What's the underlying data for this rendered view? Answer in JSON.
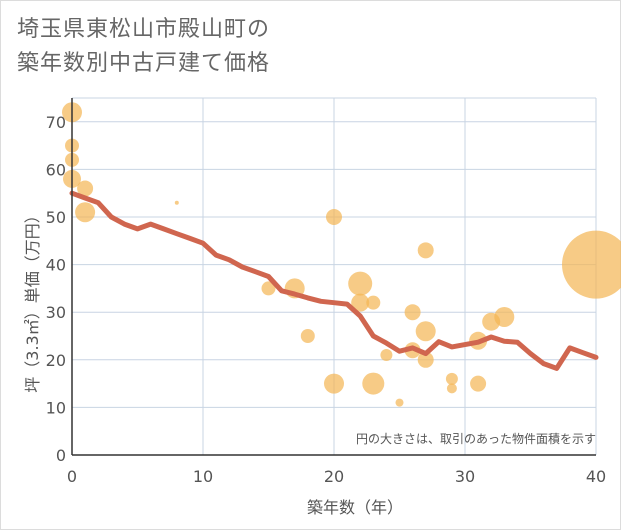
{
  "title": {
    "line1": "埼玉県東松山市殿山町の",
    "line2": "築年数別中古戸建て価格"
  },
  "chart_data": {
    "type": "scatter",
    "xlabel": "築年数（年）",
    "ylabel": "坪（3.3㎡）単価（万円）",
    "xlim": [
      0,
      40
    ],
    "ylim": [
      0,
      75
    ],
    "x_ticks": [
      0,
      10,
      20,
      30,
      40
    ],
    "y_ticks": [
      0,
      10,
      20,
      30,
      40,
      50,
      60,
      70
    ],
    "grid": true,
    "note": "円の大きさは、取引のあった物件面積を示す",
    "colors": {
      "bubble": "#f3b552",
      "trend": "#d0664f",
      "grid": "#c8d4e3",
      "axis": "#333333"
    },
    "bubbles": [
      {
        "x": 0,
        "y": 72,
        "size": 10
      },
      {
        "x": 0,
        "y": 65,
        "size": 7
      },
      {
        "x": 0,
        "y": 62,
        "size": 7
      },
      {
        "x": 0,
        "y": 58,
        "size": 9
      },
      {
        "x": 1,
        "y": 56,
        "size": 8
      },
      {
        "x": 1,
        "y": 51,
        "size": 10
      },
      {
        "x": 8,
        "y": 53,
        "size": 2
      },
      {
        "x": 15,
        "y": 35,
        "size": 7
      },
      {
        "x": 17,
        "y": 35,
        "size": 10
      },
      {
        "x": 18,
        "y": 25,
        "size": 7
      },
      {
        "x": 20,
        "y": 50,
        "size": 8
      },
      {
        "x": 20,
        "y": 15,
        "size": 10
      },
      {
        "x": 22,
        "y": 36,
        "size": 12
      },
      {
        "x": 22,
        "y": 32,
        "size": 9
      },
      {
        "x": 23,
        "y": 32,
        "size": 7
      },
      {
        "x": 23,
        "y": 15,
        "size": 11
      },
      {
        "x": 24,
        "y": 21,
        "size": 6
      },
      {
        "x": 25,
        "y": 11,
        "size": 4
      },
      {
        "x": 26,
        "y": 30,
        "size": 8
      },
      {
        "x": 26,
        "y": 22,
        "size": 8
      },
      {
        "x": 27,
        "y": 43,
        "size": 8
      },
      {
        "x": 27,
        "y": 26,
        "size": 10
      },
      {
        "x": 27,
        "y": 20,
        "size": 8
      },
      {
        "x": 29,
        "y": 16,
        "size": 6
      },
      {
        "x": 29,
        "y": 14,
        "size": 5
      },
      {
        "x": 31,
        "y": 24,
        "size": 9
      },
      {
        "x": 31,
        "y": 15,
        "size": 8
      },
      {
        "x": 32,
        "y": 28,
        "size": 9
      },
      {
        "x": 33,
        "y": 29,
        "size": 10
      },
      {
        "x": 40,
        "y": 40,
        "size": 34
      }
    ],
    "trend": {
      "x": [
        0,
        1,
        2,
        3,
        4,
        5,
        6,
        7,
        8,
        9,
        10,
        11,
        12,
        13,
        14,
        15,
        16,
        17,
        18,
        19,
        20,
        21,
        22,
        23,
        24,
        25,
        26,
        27,
        28,
        29,
        30,
        31,
        32,
        33,
        34,
        35,
        36,
        37,
        38,
        39,
        40
      ],
      "y": [
        55,
        54,
        53,
        50,
        48.5,
        47.5,
        48.5,
        47.5,
        46.5,
        45.5,
        44.5,
        42,
        41,
        39.5,
        38.5,
        37.5,
        34.5,
        33.8,
        33,
        32.3,
        32,
        31.7,
        29.2,
        25,
        23.5,
        21.8,
        22.5,
        21.3,
        23.8,
        22.7,
        23.2,
        23.7,
        24.8,
        23.9,
        23.7,
        21.3,
        19.2,
        18.2,
        22.5,
        21.5,
        20.5
      ]
    }
  }
}
